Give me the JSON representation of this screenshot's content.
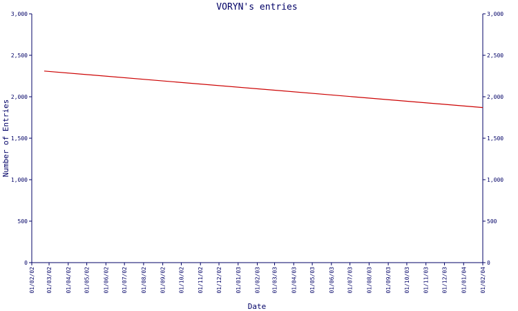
{
  "chart_data": {
    "type": "line",
    "title": "VORYN's entries",
    "xlabel": "Date",
    "ylabel": "Number of Entries",
    "x_tick_labels": [
      "01/02/02",
      "01/03/02",
      "01/04/02",
      "01/05/02",
      "01/06/02",
      "01/07/02",
      "01/08/02",
      "01/09/02",
      "01/10/02",
      "01/11/02",
      "01/12/02",
      "01/01/03",
      "01/02/03",
      "01/03/03",
      "01/04/03",
      "01/05/03",
      "01/06/03",
      "01/07/03",
      "01/08/03",
      "01/09/03",
      "01/10/03",
      "01/11/03",
      "01/12/03",
      "01/01/04",
      "01/02/04"
    ],
    "y_ticks": [
      0,
      500,
      1000,
      1500,
      2000,
      2500,
      3000
    ],
    "y_tick_labels": [
      "0",
      "500",
      "1,000",
      "1,500",
      "2,000",
      "2,500",
      "3,000"
    ],
    "ylim": [
      0,
      3000
    ],
    "xlim": [
      "01/02/02",
      "01/02/04"
    ],
    "grid": false,
    "right_axis_mirror": true,
    "series": [
      {
        "x": [
          "01/02/02",
          "01/02/04"
        ],
        "y": [
          2310,
          1870
        ]
      }
    ]
  },
  "colors": {
    "axis": "#000066",
    "series": "#cc0000",
    "background": "#ffffff"
  }
}
